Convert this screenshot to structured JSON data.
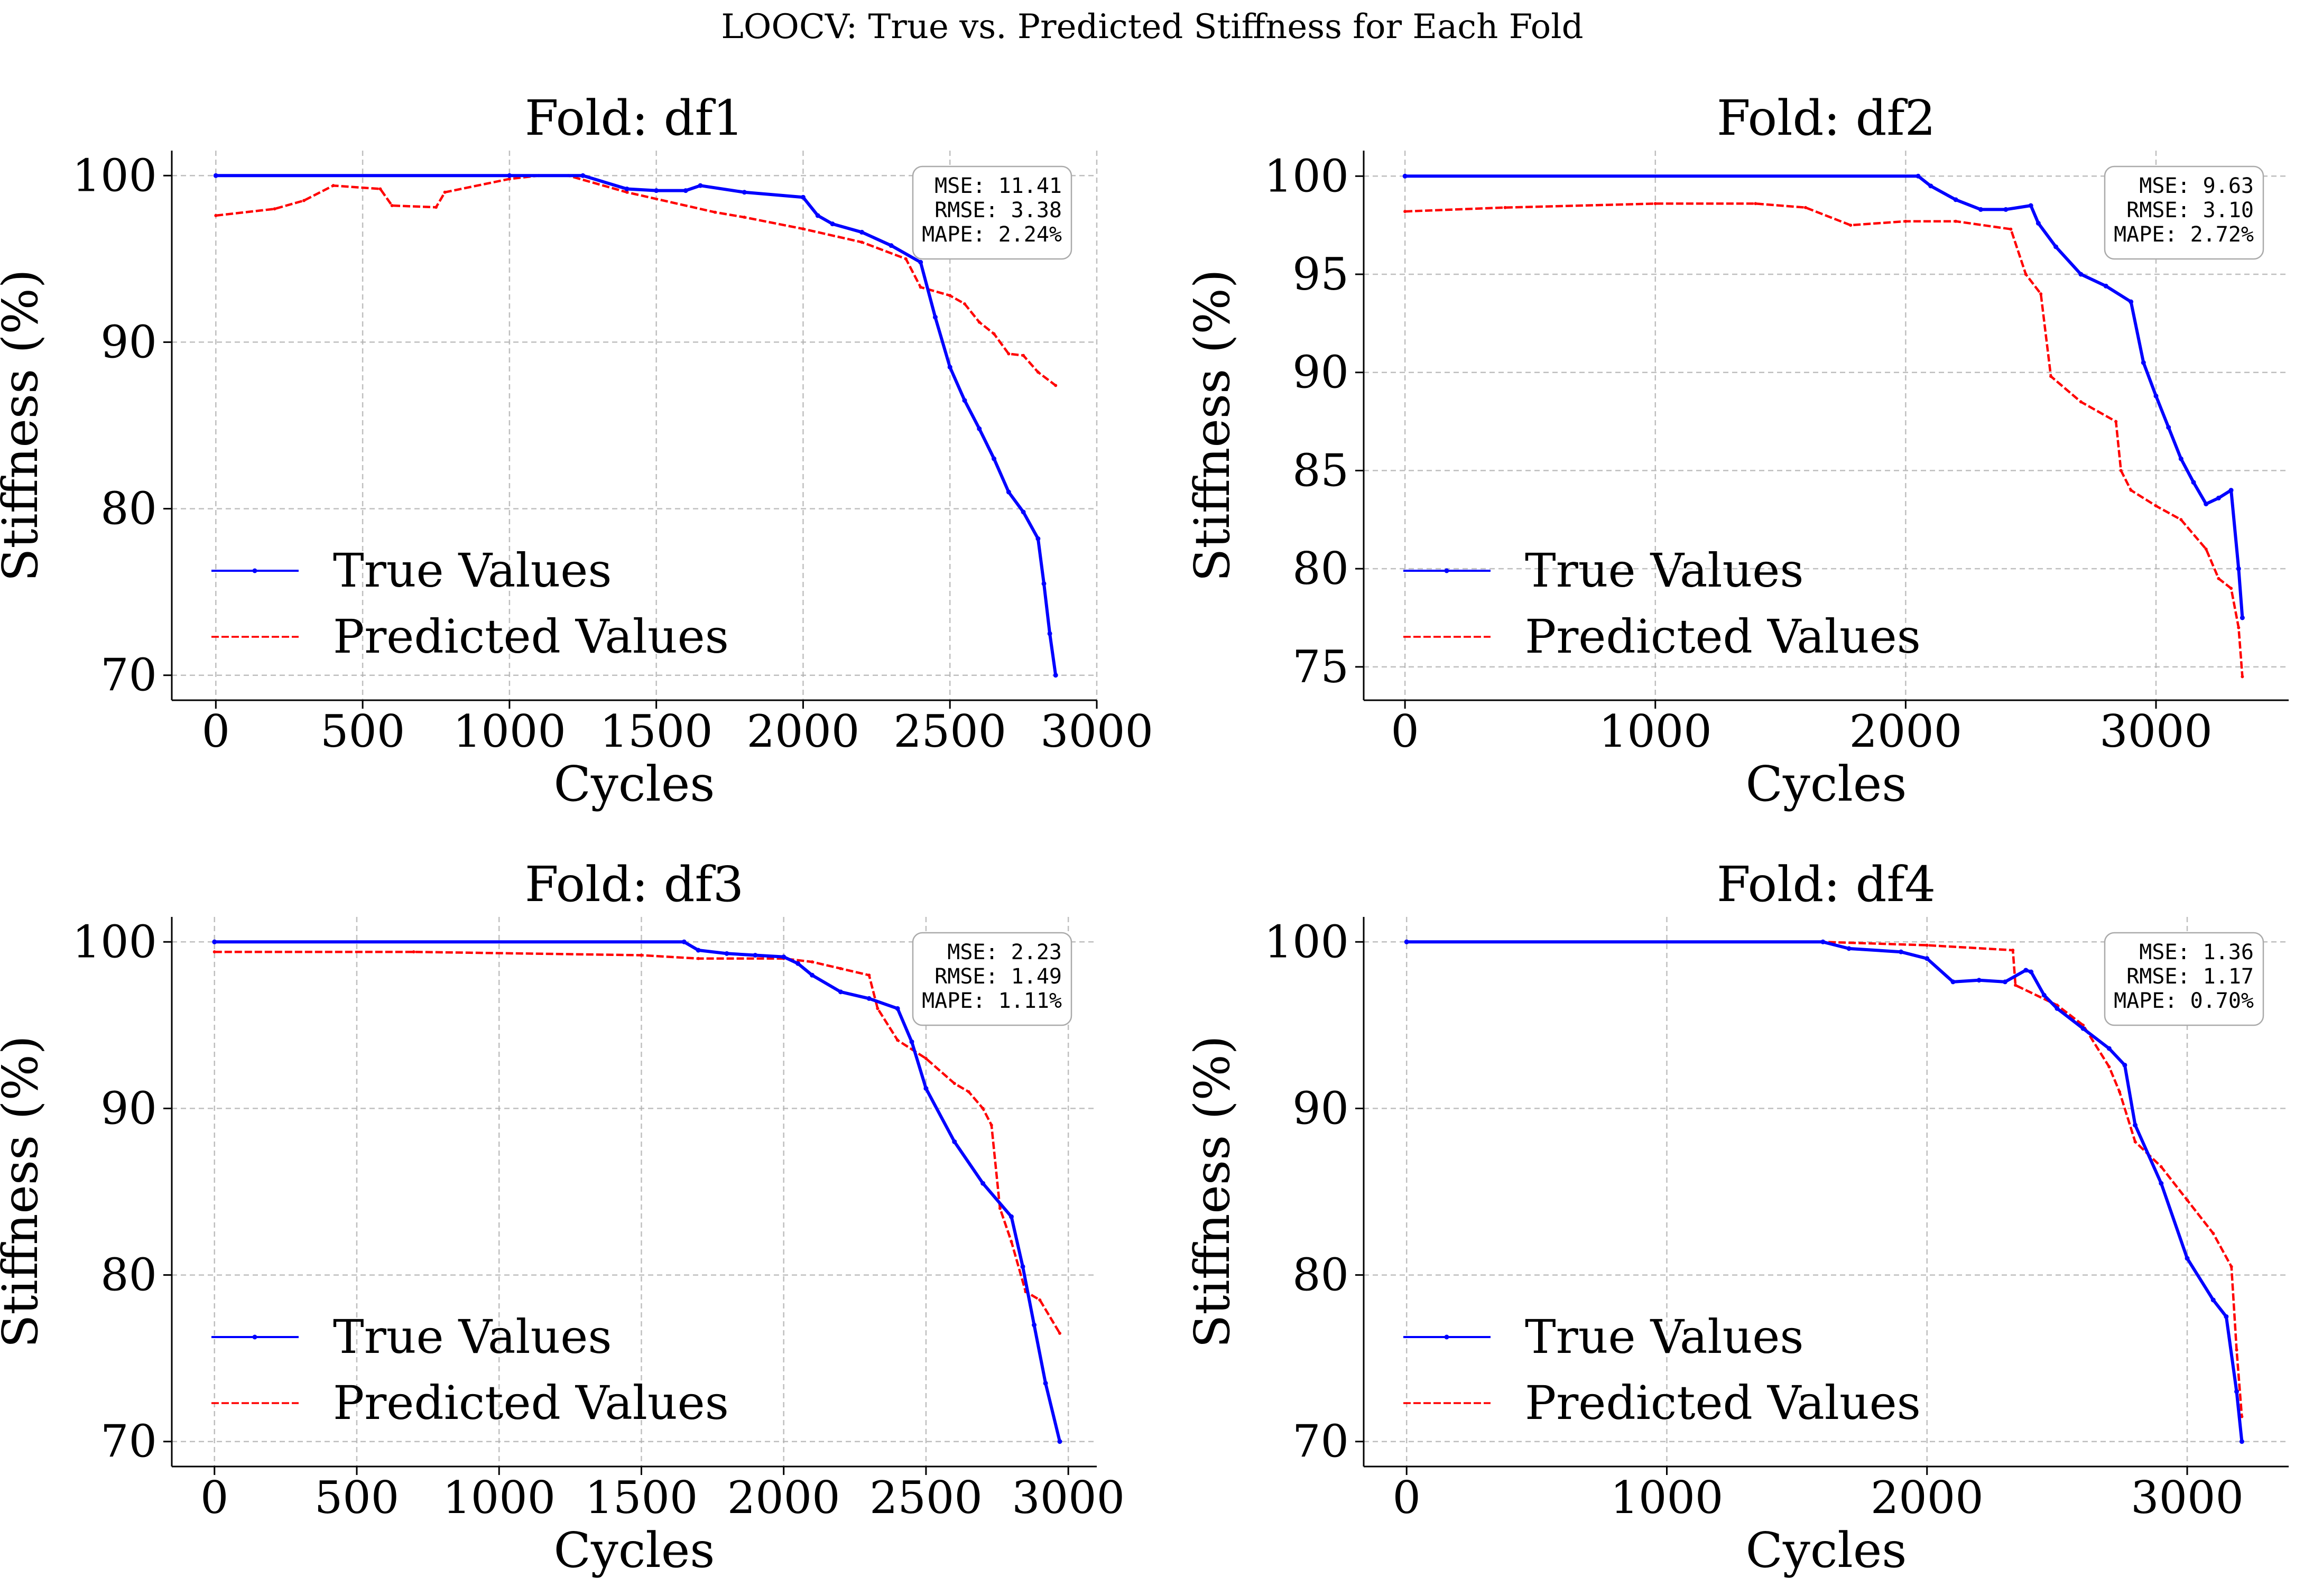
{
  "suptitle": "LOOCV: True vs. Predicted Stiffness for Each Fold",
  "colors": {
    "true": "#0000ff",
    "predicted": "#ff0000",
    "grid": "#b0b0b0"
  },
  "chart_data": [
    {
      "type": "line",
      "title": "Fold: df1",
      "xlabel": "Cycles",
      "ylabel": "Stiffness (%)",
      "xlim": [
        -150,
        3000
      ],
      "ylim": [
        68.5,
        101.5
      ],
      "xticks": [
        0,
        500,
        1000,
        1500,
        2000,
        2500,
        3000
      ],
      "yticks": [
        70,
        80,
        90,
        100
      ],
      "grid": true,
      "legend": "lower-left",
      "metrics": [
        "MSE:  11.41",
        "RMSE: 3.38",
        "MAPE: 2.24%"
      ],
      "series": [
        {
          "name": "True Values",
          "style": "solid-dots",
          "x": [
            0,
            1000,
            1250,
            1400,
            1500,
            1600,
            1650,
            1800,
            2000,
            2050,
            2100,
            2200,
            2300,
            2400,
            2450,
            2500,
            2550,
            2600,
            2650,
            2700,
            2750,
            2800,
            2820,
            2840,
            2860
          ],
          "y": [
            100,
            100,
            100,
            99.2,
            99.1,
            99.1,
            99.4,
            99.0,
            98.7,
            97.6,
            97.1,
            96.6,
            95.8,
            94.8,
            91.5,
            88.5,
            86.5,
            84.8,
            83.0,
            81.0,
            79.8,
            78.2,
            75.5,
            72.5,
            70.0
          ]
        },
        {
          "name": "Predicted Values",
          "style": "dashed",
          "x": [
            0,
            200,
            300,
            400,
            560,
            600,
            750,
            780,
            1000,
            1100,
            1200,
            1400,
            1700,
            1800,
            2000,
            2200,
            2350,
            2400,
            2500,
            2550,
            2600,
            2650,
            2700,
            2750,
            2800,
            2860
          ],
          "y": [
            97.6,
            98.0,
            98.5,
            99.4,
            99.2,
            98.2,
            98.1,
            99.0,
            99.8,
            100.0,
            100.0,
            99.0,
            97.8,
            97.5,
            96.8,
            96.0,
            95.0,
            93.3,
            92.8,
            92.3,
            91.2,
            90.5,
            89.3,
            89.2,
            88.2,
            87.4
          ]
        }
      ]
    },
    {
      "type": "line",
      "title": "Fold: df2",
      "xlabel": "Cycles",
      "ylabel": "Stiffness (%)",
      "xlim": [
        -165,
        3530
      ],
      "ylim": [
        73.3,
        101.3
      ],
      "xticks": [
        0,
        1000,
        2000,
        3000
      ],
      "yticks": [
        75,
        80,
        85,
        90,
        95,
        100
      ],
      "grid": true,
      "legend": "lower-left",
      "metrics": [
        "MSE:  9.63",
        "RMSE: 3.10",
        "MAPE: 2.72%"
      ],
      "series": [
        {
          "name": "True Values",
          "style": "solid-dots",
          "x": [
            0,
            2050,
            2100,
            2200,
            2300,
            2400,
            2500,
            2530,
            2600,
            2700,
            2800,
            2900,
            2950,
            3000,
            3050,
            3100,
            3150,
            3200,
            3250,
            3300,
            3330,
            3345
          ],
          "y": [
            100,
            100,
            99.5,
            98.8,
            98.3,
            98.3,
            98.5,
            97.6,
            96.4,
            95.0,
            94.4,
            93.6,
            90.5,
            88.8,
            87.2,
            85.6,
            84.4,
            83.3,
            83.6,
            84.0,
            80.0,
            77.5
          ]
        },
        {
          "name": "Predicted Values",
          "style": "dashed",
          "x": [
            0,
            400,
            1000,
            1400,
            1600,
            1780,
            2000,
            2200,
            2420,
            2480,
            2540,
            2580,
            2700,
            2840,
            2860,
            2900,
            3000,
            3100,
            3200,
            3250,
            3300,
            3330,
            3345
          ],
          "y": [
            98.2,
            98.4,
            98.6,
            98.6,
            98.4,
            97.5,
            97.7,
            97.7,
            97.3,
            95.0,
            94.0,
            89.8,
            88.5,
            87.5,
            85.0,
            84.0,
            83.2,
            82.5,
            81.0,
            79.5,
            79.0,
            77.0,
            74.5
          ]
        }
      ]
    },
    {
      "type": "line",
      "title": "Fold: df3",
      "xlabel": "Cycles",
      "ylabel": "Stiffness (%)",
      "xlim": [
        -150,
        3100
      ],
      "ylim": [
        68.5,
        101.5
      ],
      "xticks": [
        0,
        500,
        1000,
        1500,
        2000,
        2500,
        3000
      ],
      "yticks": [
        70,
        80,
        90,
        100
      ],
      "grid": true,
      "legend": "lower-left",
      "metrics": [
        "MSE:  2.23",
        "RMSE: 1.49",
        "MAPE: 1.11%"
      ],
      "series": [
        {
          "name": "True Values",
          "style": "solid-dots",
          "x": [
            0,
            1650,
            1700,
            1800,
            1900,
            2000,
            2050,
            2100,
            2200,
            2300,
            2400,
            2450,
            2500,
            2600,
            2700,
            2800,
            2840,
            2880,
            2920,
            2970
          ],
          "y": [
            100,
            100,
            99.5,
            99.3,
            99.2,
            99.1,
            98.7,
            98.0,
            97.0,
            96.6,
            96.0,
            94.0,
            91.2,
            88.0,
            85.5,
            83.5,
            80.5,
            77.0,
            73.5,
            70.0
          ]
        },
        {
          "name": "Predicted Values",
          "style": "dashed",
          "x": [
            0,
            700,
            1500,
            1700,
            2000,
            2100,
            2200,
            2300,
            2330,
            2400,
            2500,
            2600,
            2650,
            2700,
            2730,
            2760,
            2800,
            2850,
            2900,
            2970
          ],
          "y": [
            99.4,
            99.4,
            99.2,
            99.0,
            99.0,
            98.8,
            98.4,
            98.0,
            96.0,
            94.1,
            93.0,
            91.5,
            91.0,
            90.0,
            89.0,
            84.0,
            82.0,
            79.0,
            78.5,
            76.5
          ]
        }
      ]
    },
    {
      "type": "line",
      "title": "Fold: df4",
      "xlabel": "Cycles",
      "ylabel": "Stiffness (%)",
      "xlim": [
        -165,
        3390
      ],
      "ylim": [
        68.5,
        101.5
      ],
      "xticks": [
        0,
        1000,
        2000,
        3000
      ],
      "yticks": [
        70,
        80,
        90,
        100
      ],
      "grid": true,
      "legend": "lower-left",
      "metrics": [
        "MSE:  1.36",
        "RMSE: 1.17",
        "MAPE: 0.70%"
      ],
      "series": [
        {
          "name": "True Values",
          "style": "solid-dots",
          "x": [
            0,
            1600,
            1700,
            1900,
            2000,
            2100,
            2200,
            2300,
            2380,
            2400,
            2450,
            2500,
            2600,
            2700,
            2760,
            2800,
            2900,
            3000,
            3100,
            3150,
            3190,
            3210
          ],
          "y": [
            100,
            100,
            99.6,
            99.4,
            99.0,
            97.6,
            97.7,
            97.6,
            98.3,
            98.2,
            96.8,
            96.0,
            94.8,
            93.6,
            92.6,
            89.0,
            85.5,
            81.0,
            78.5,
            77.5,
            73.0,
            70.0
          ]
        },
        {
          "name": "Predicted Values",
          "style": "dashed",
          "x": [
            0,
            1000,
            1600,
            2000,
            2330,
            2340,
            2500,
            2600,
            2700,
            2740,
            2800,
            2900,
            3000,
            3100,
            3170,
            3190,
            3210
          ],
          "y": [
            100,
            100,
            100,
            99.8,
            99.5,
            97.4,
            96.2,
            95.0,
            92.5,
            91.0,
            88.0,
            86.5,
            84.5,
            82.5,
            80.5,
            75.5,
            71.5
          ]
        }
      ]
    }
  ]
}
